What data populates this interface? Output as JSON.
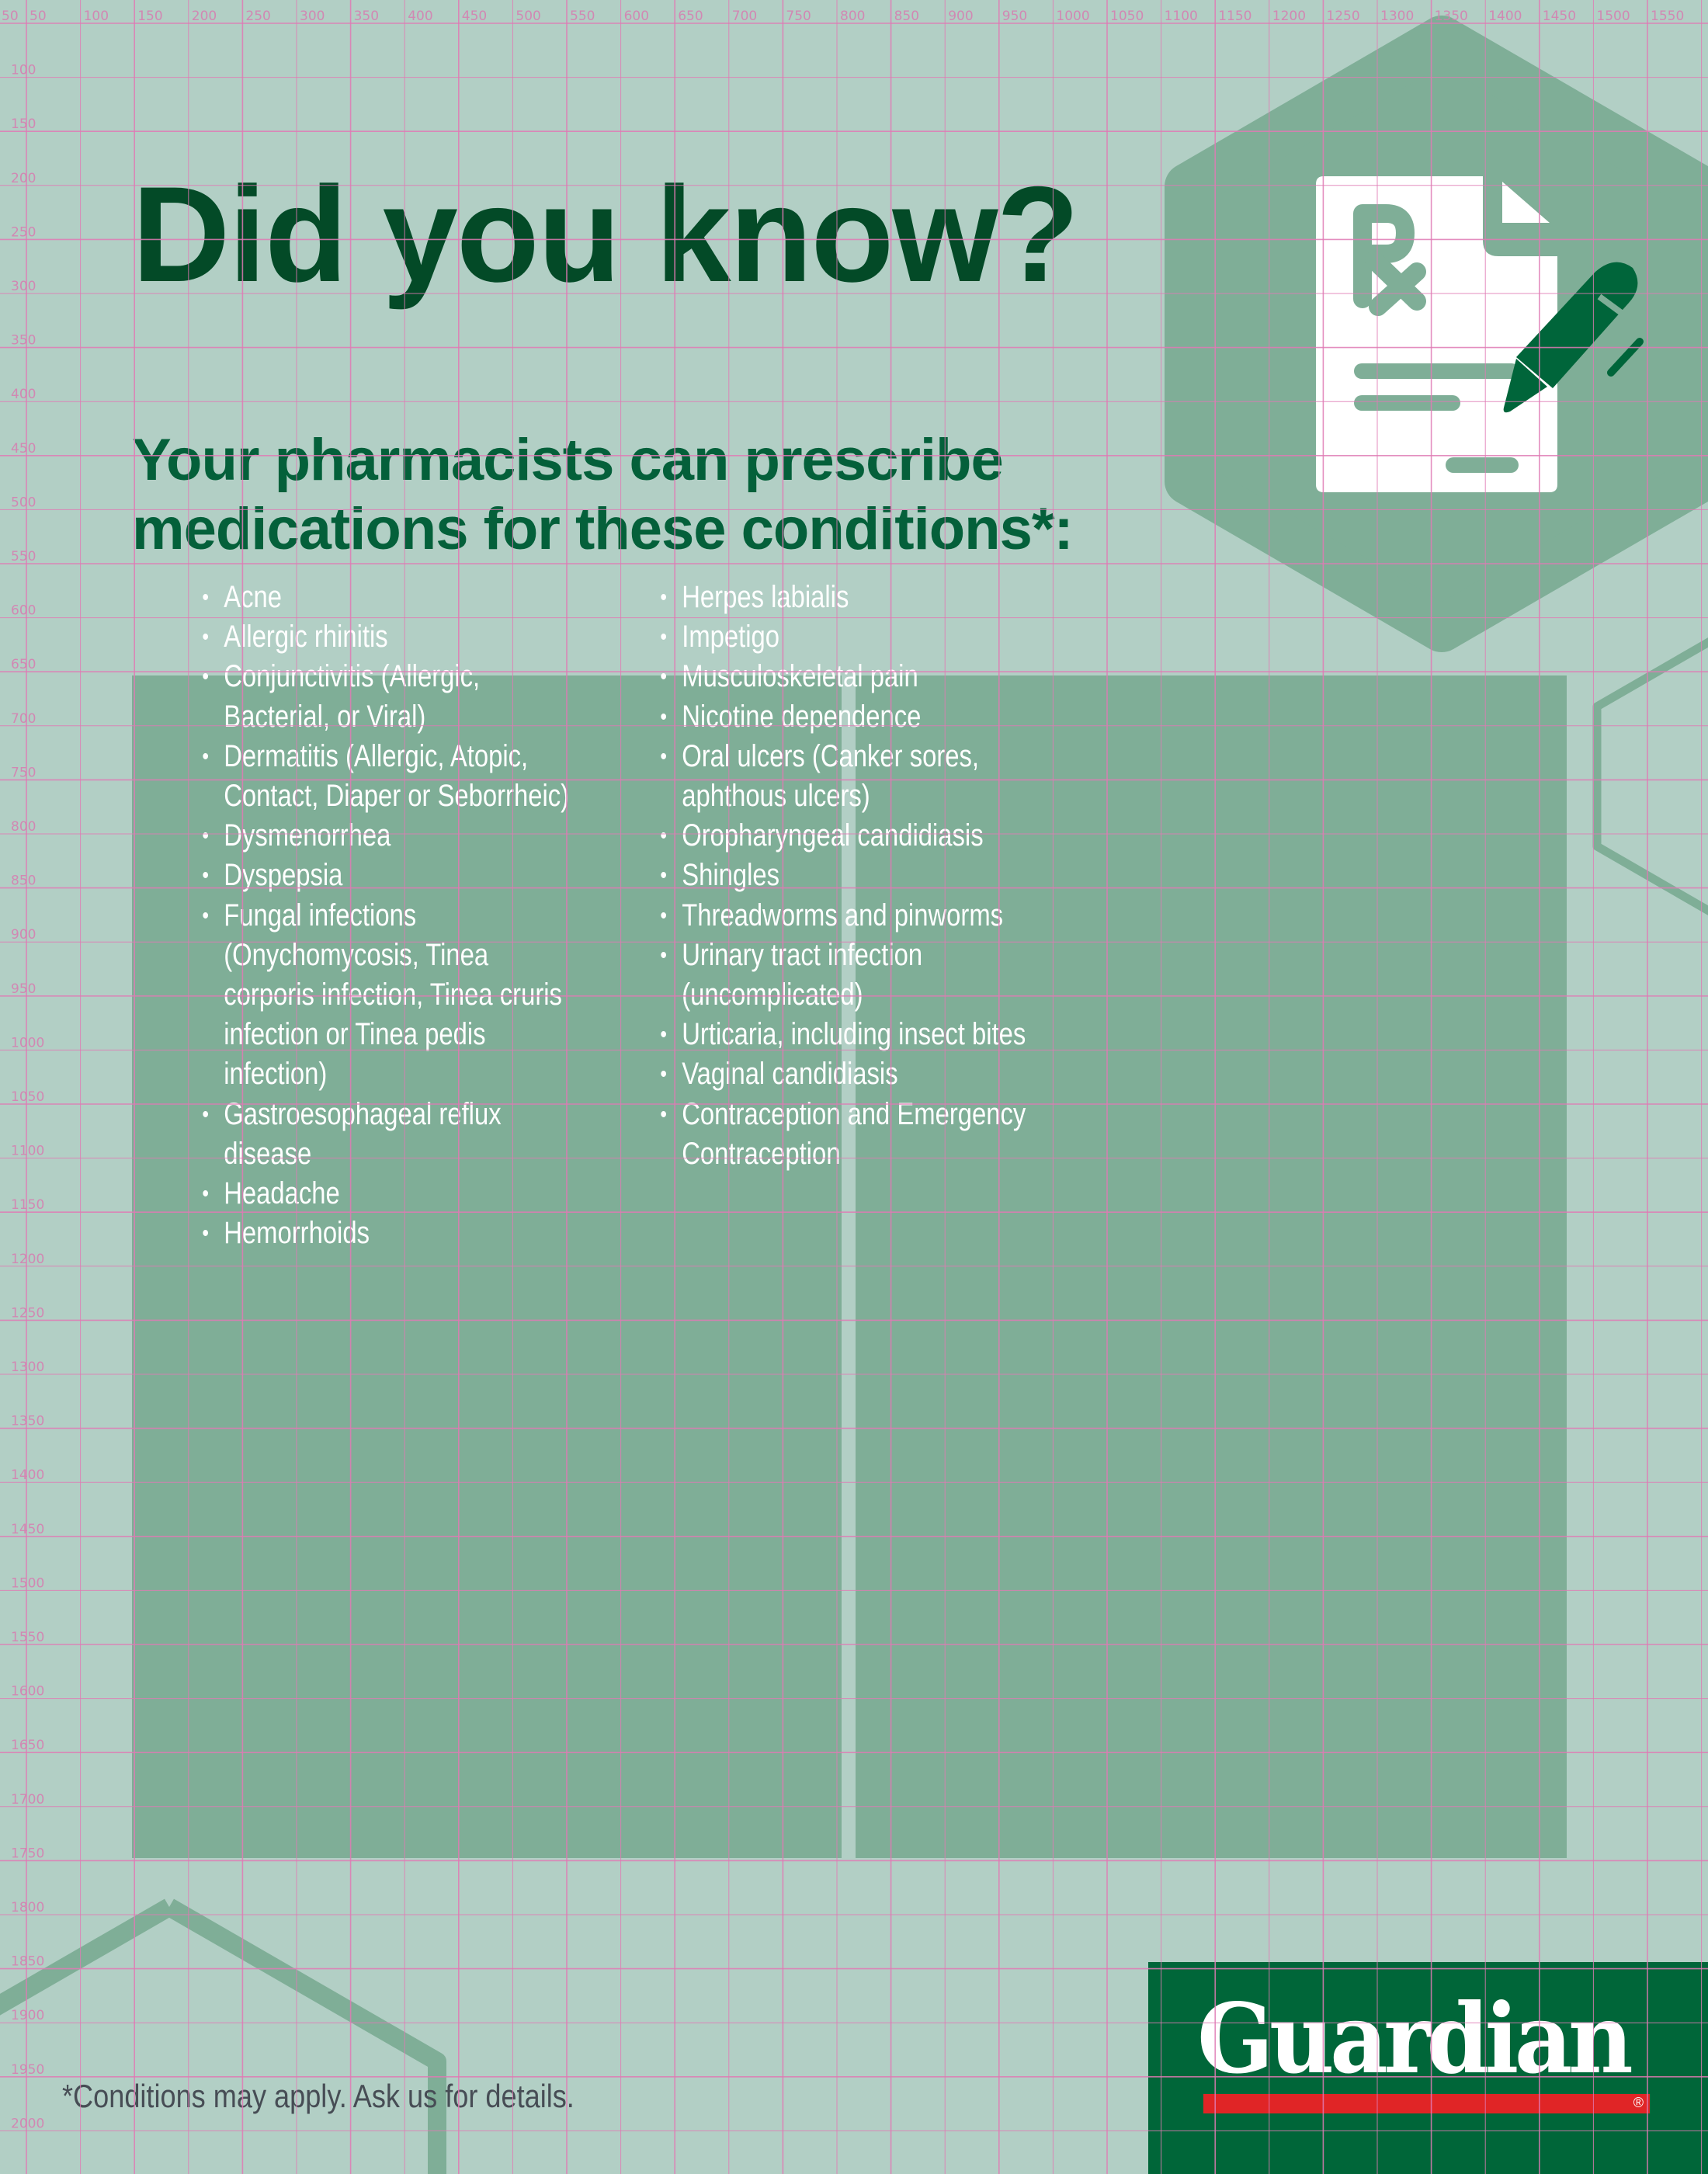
{
  "poster": {
    "title": "Did you know?",
    "subtitle_line1": "Your pharmacists can prescribe",
    "subtitle_line2": "medications for these conditions*:",
    "conditions_column1": [
      "Acne",
      "Allergic rhinitis",
      "Conjunctivitis (Allergic, Bacterial, or Viral)",
      "Dermatitis (Allergic, Atopic, Contact, Diaper or Seborrheic)",
      "Dysmenorrhea",
      "Dyspepsia",
      "Fungal infections (Onychomycosis, Tinea corporis infection, Tinea cruris infection or Tinea pedis infection)",
      "Gastroesophageal reflux disease",
      "Headache",
      "Hemorrhoids"
    ],
    "conditions_column2": [
      "Herpes labialis",
      "Impetigo",
      "Musculoskeletal pain",
      "Nicotine dependence",
      "Oral ulcers (Canker sores, aphthous ulcers)",
      "Oropharyngeal candidiasis",
      "Shingles",
      "Threadworms and pinworms",
      "Urinary tract infection (uncomplicated)",
      "Urticaria, including insect bites",
      "Vaginal candidiasis",
      "Contraception and Emergency Contraception"
    ],
    "bullet": "•",
    "footnote": "*Conditions may apply. Ask us for details.",
    "icon": "prescription-document-with-pen-icon"
  },
  "logo": {
    "brand": "Guardian",
    "registered_mark": "®"
  },
  "ruler": {
    "corner_label": "50",
    "top_labels": [
      "50",
      "100",
      "150",
      "200",
      "250",
      "300",
      "350",
      "400",
      "450",
      "500",
      "550",
      "600",
      "650",
      "700",
      "750",
      "800",
      "850",
      "900",
      "950",
      "1000",
      "1050",
      "1100",
      "1150",
      "1200",
      "1250",
      "1300",
      "1350",
      "1400",
      "1450",
      "1500",
      "1550"
    ],
    "left_labels": [
      "100",
      "150",
      "200",
      "250",
      "300",
      "350",
      "400",
      "450",
      "500",
      "550",
      "600",
      "650",
      "700",
      "750",
      "800",
      "850",
      "900",
      "950",
      "1000",
      "1050",
      "1100",
      "1150",
      "1200",
      "1250",
      "1300",
      "1350",
      "1400",
      "1450",
      "1500",
      "1550",
      "1600",
      "1650",
      "1700",
      "1750",
      "1800",
      "1850",
      "1900",
      "1950",
      "2000"
    ]
  },
  "colors": {
    "background": "#b2cfc5",
    "panel": "#7fae97",
    "title": "#034a27",
    "subtitle": "#04603a",
    "brand_green": "#006639",
    "brand_red": "#e02526",
    "grid": "#e07bb5"
  }
}
